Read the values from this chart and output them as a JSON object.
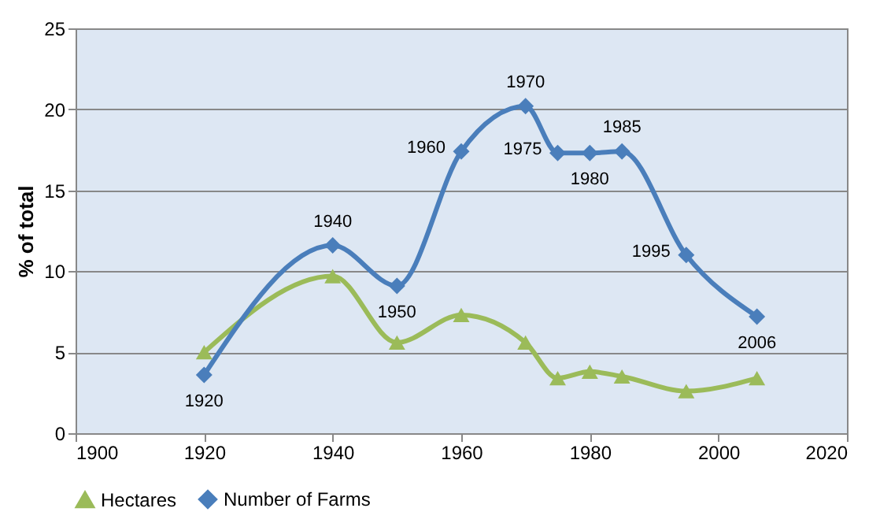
{
  "chart_data": {
    "type": "line",
    "ylabel": "% of total",
    "x": [
      1920,
      1940,
      1950,
      1960,
      1970,
      1975,
      1980,
      1985,
      1995,
      2006
    ],
    "series": [
      {
        "name": "Hectares",
        "color": "#9bbb59",
        "marker": "triangle",
        "values": [
          5.0,
          9.7,
          5.6,
          7.3,
          5.6,
          3.4,
          3.8,
          3.5,
          2.6,
          3.4
        ]
      },
      {
        "name": "Number of Farms",
        "color": "#4a7ebb",
        "marker": "diamond",
        "values": [
          3.6,
          11.6,
          9.1,
          17.4,
          20.2,
          17.3,
          17.3,
          17.4,
          11.0,
          7.2
        ]
      }
    ],
    "annotations": [
      {
        "text": "1920",
        "x": 1920,
        "y": 3.6
      },
      {
        "text": "1940",
        "x": 1940,
        "y": 11.6
      },
      {
        "text": "1950",
        "x": 1950,
        "y": 9.1
      },
      {
        "text": "1960",
        "x": 1960,
        "y": 17.4
      },
      {
        "text": "1970",
        "x": 1970,
        "y": 20.2
      },
      {
        "text": "1975",
        "x": 1975,
        "y": 17.3
      },
      {
        "text": "1980",
        "x": 1980,
        "y": 17.3
      },
      {
        "text": "1985",
        "x": 1985,
        "y": 17.4
      },
      {
        "text": "1995",
        "x": 1995,
        "y": 11.0
      },
      {
        "text": "2006",
        "x": 2006,
        "y": 7.2
      }
    ],
    "xlim": [
      1900,
      2020
    ],
    "xticks": [
      1900,
      1920,
      1940,
      1960,
      1980,
      2000,
      2020
    ],
    "ylim": [
      0,
      25
    ],
    "yticks": [
      0,
      5,
      10,
      15,
      20,
      25
    ],
    "grid": "y",
    "legend": "bottom",
    "line_style": "solid"
  }
}
